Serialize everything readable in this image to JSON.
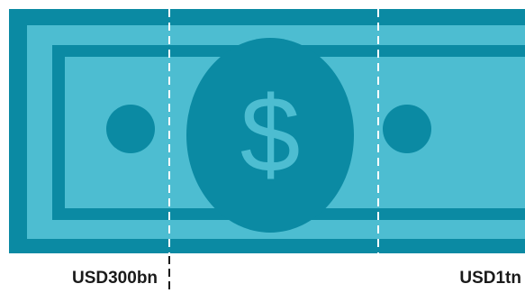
{
  "bill": {
    "symbol": "$",
    "colors": {
      "outer": "#0b8aa3",
      "inner_light": "#4dbdd1",
      "medallion": "#0b8aa3",
      "symbol": "#4dbdd1",
      "divider": "#ffffff"
    }
  },
  "markers": {
    "left_label": "USD300bn",
    "right_label": "USD1tn"
  }
}
